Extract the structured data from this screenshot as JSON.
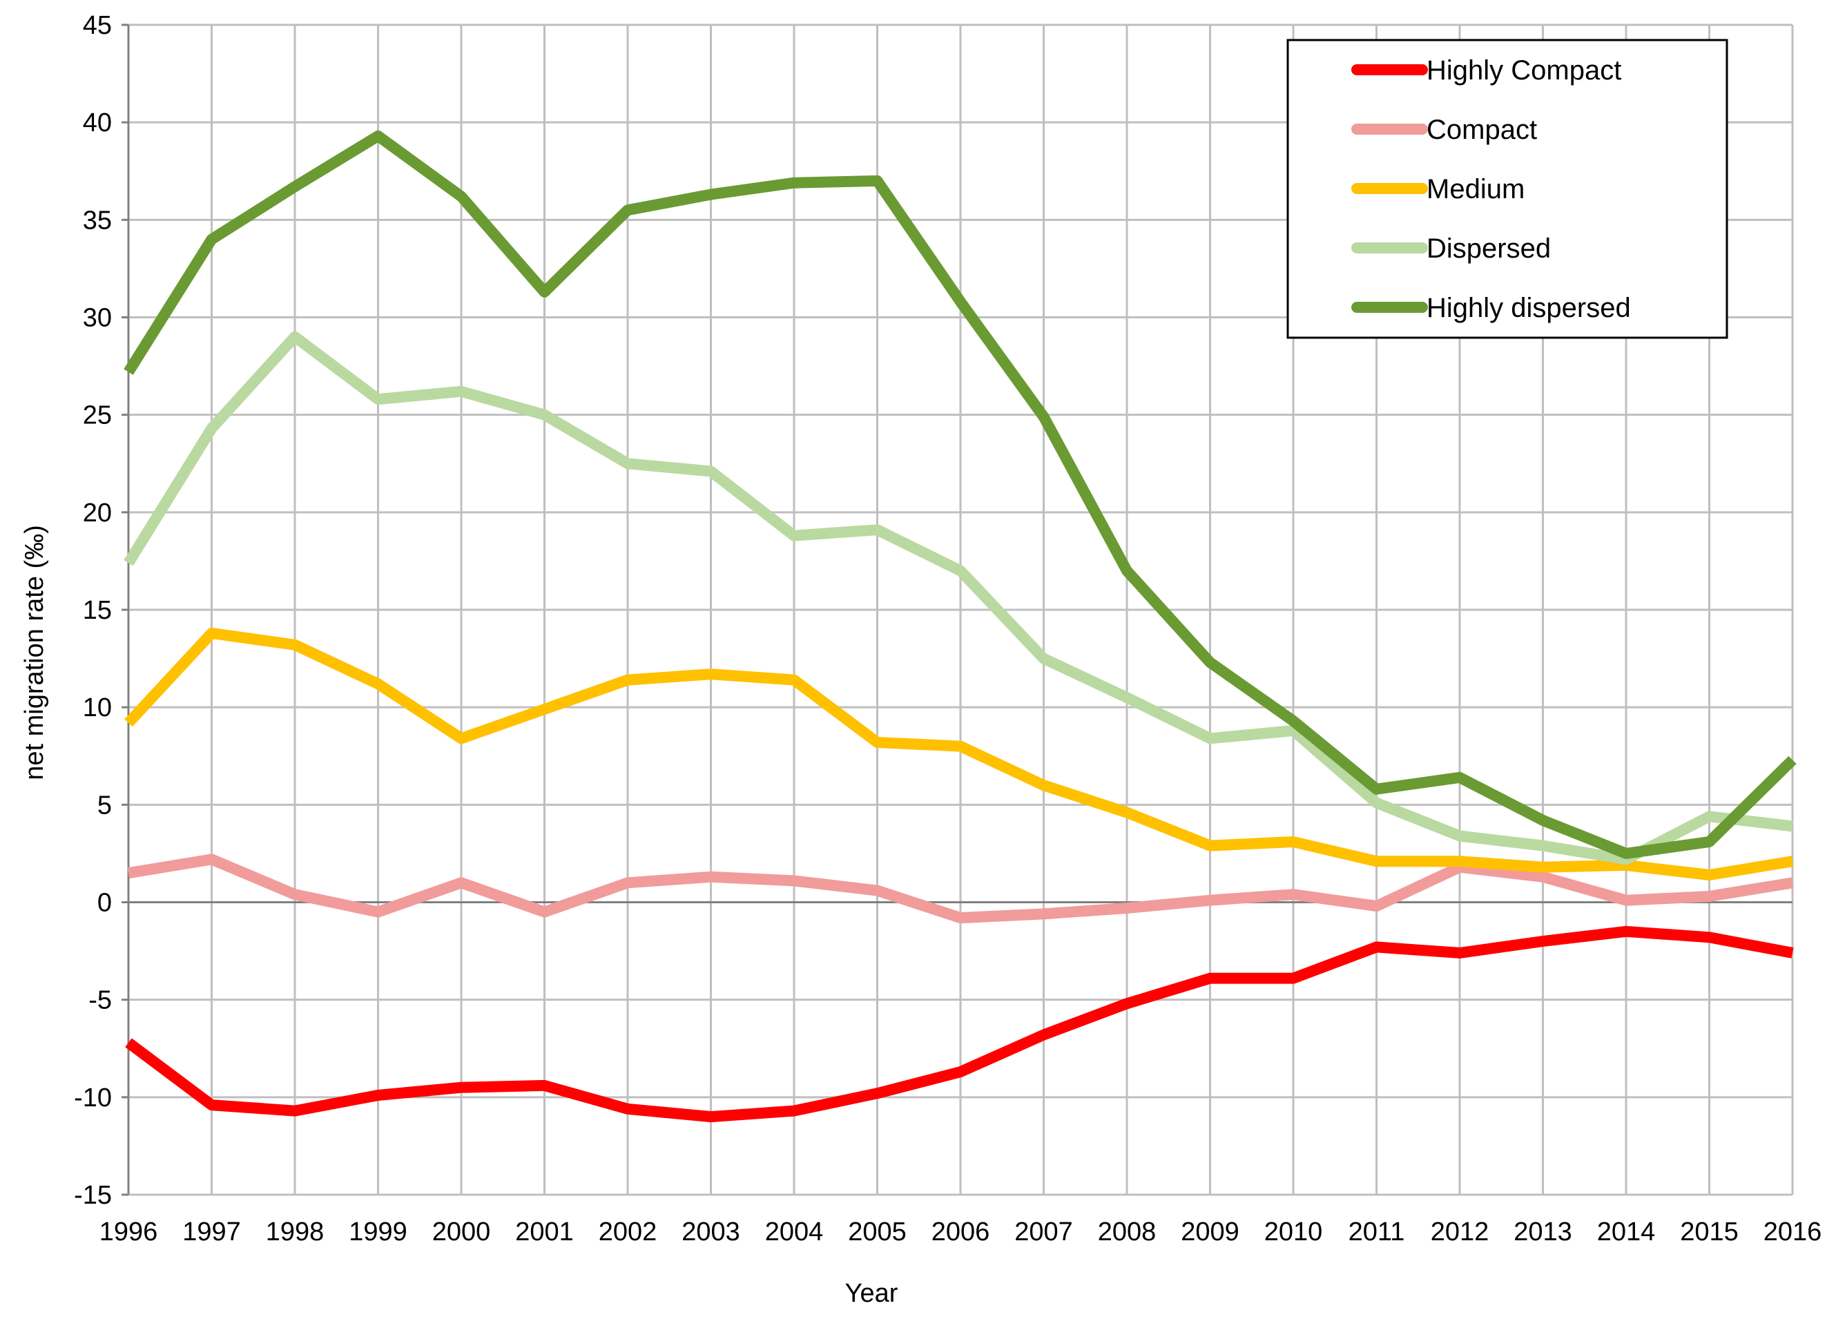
{
  "chart_data": {
    "type": "line",
    "title": "",
    "xlabel": "Year",
    "ylabel": "net migration rate (‰)",
    "categories": [
      "1996",
      "1997",
      "1998",
      "1999",
      "2000",
      "2001",
      "2002",
      "2003",
      "2004",
      "2005",
      "2006",
      "2007",
      "2008",
      "2009",
      "2010",
      "2011",
      "2012",
      "2013",
      "2014",
      "2015",
      "2016"
    ],
    "ylim": [
      -15,
      45
    ],
    "yticks": [
      -15,
      -10,
      -5,
      0,
      5,
      10,
      15,
      20,
      25,
      30,
      35,
      40,
      45
    ],
    "ytick_labels": [
      "-15",
      "-10",
      "-5",
      "0",
      "5",
      "10",
      "15",
      "20",
      "25",
      "30",
      "35",
      "40",
      "45"
    ],
    "grid": true,
    "legend_position": "top-right",
    "series": [
      {
        "name": "Highly Compact",
        "color": "#ff0000",
        "values": [
          -7.2,
          -10.4,
          -10.7,
          -9.9,
          -9.5,
          -9.4,
          -10.6,
          -11.0,
          -10.7,
          -9.8,
          -8.7,
          -6.8,
          -5.2,
          -3.9,
          -3.9,
          -2.3,
          -2.6,
          -2.0,
          -1.5,
          -1.8,
          -2.6
        ]
      },
      {
        "name": "Compact",
        "color": "#f19b9b",
        "values": [
          1.5,
          2.2,
          0.4,
          -0.5,
          1.0,
          -0.5,
          1.0,
          1.3,
          1.1,
          0.6,
          -0.8,
          -0.6,
          -0.3,
          0.1,
          0.4,
          -0.2,
          1.8,
          1.3,
          0.1,
          0.3,
          1.0
        ]
      },
      {
        "name": "Medium",
        "color": "#ffc000",
        "values": [
          9.2,
          13.8,
          13.2,
          11.2,
          8.4,
          9.9,
          11.4,
          11.7,
          11.4,
          8.2,
          8.0,
          6.0,
          4.6,
          2.9,
          3.1,
          2.1,
          2.1,
          1.8,
          1.9,
          1.4,
          2.1
        ]
      },
      {
        "name": "Dispersed",
        "color": "#b9d9a0",
        "values": [
          17.4,
          24.3,
          29.0,
          25.8,
          26.2,
          25.0,
          22.5,
          22.1,
          18.8,
          19.1,
          17.0,
          12.5,
          10.5,
          8.4,
          8.8,
          5.1,
          3.4,
          2.9,
          2.2,
          4.4,
          3.9
        ]
      },
      {
        "name": "Highly dispersed",
        "color": "#6a9a32",
        "values": [
          27.2,
          34.0,
          36.7,
          39.3,
          36.2,
          31.3,
          35.5,
          36.3,
          36.9,
          37.0,
          30.8,
          24.9,
          17.0,
          12.3,
          9.3,
          5.8,
          6.4,
          4.2,
          2.5,
          3.1,
          7.3
        ]
      }
    ]
  }
}
